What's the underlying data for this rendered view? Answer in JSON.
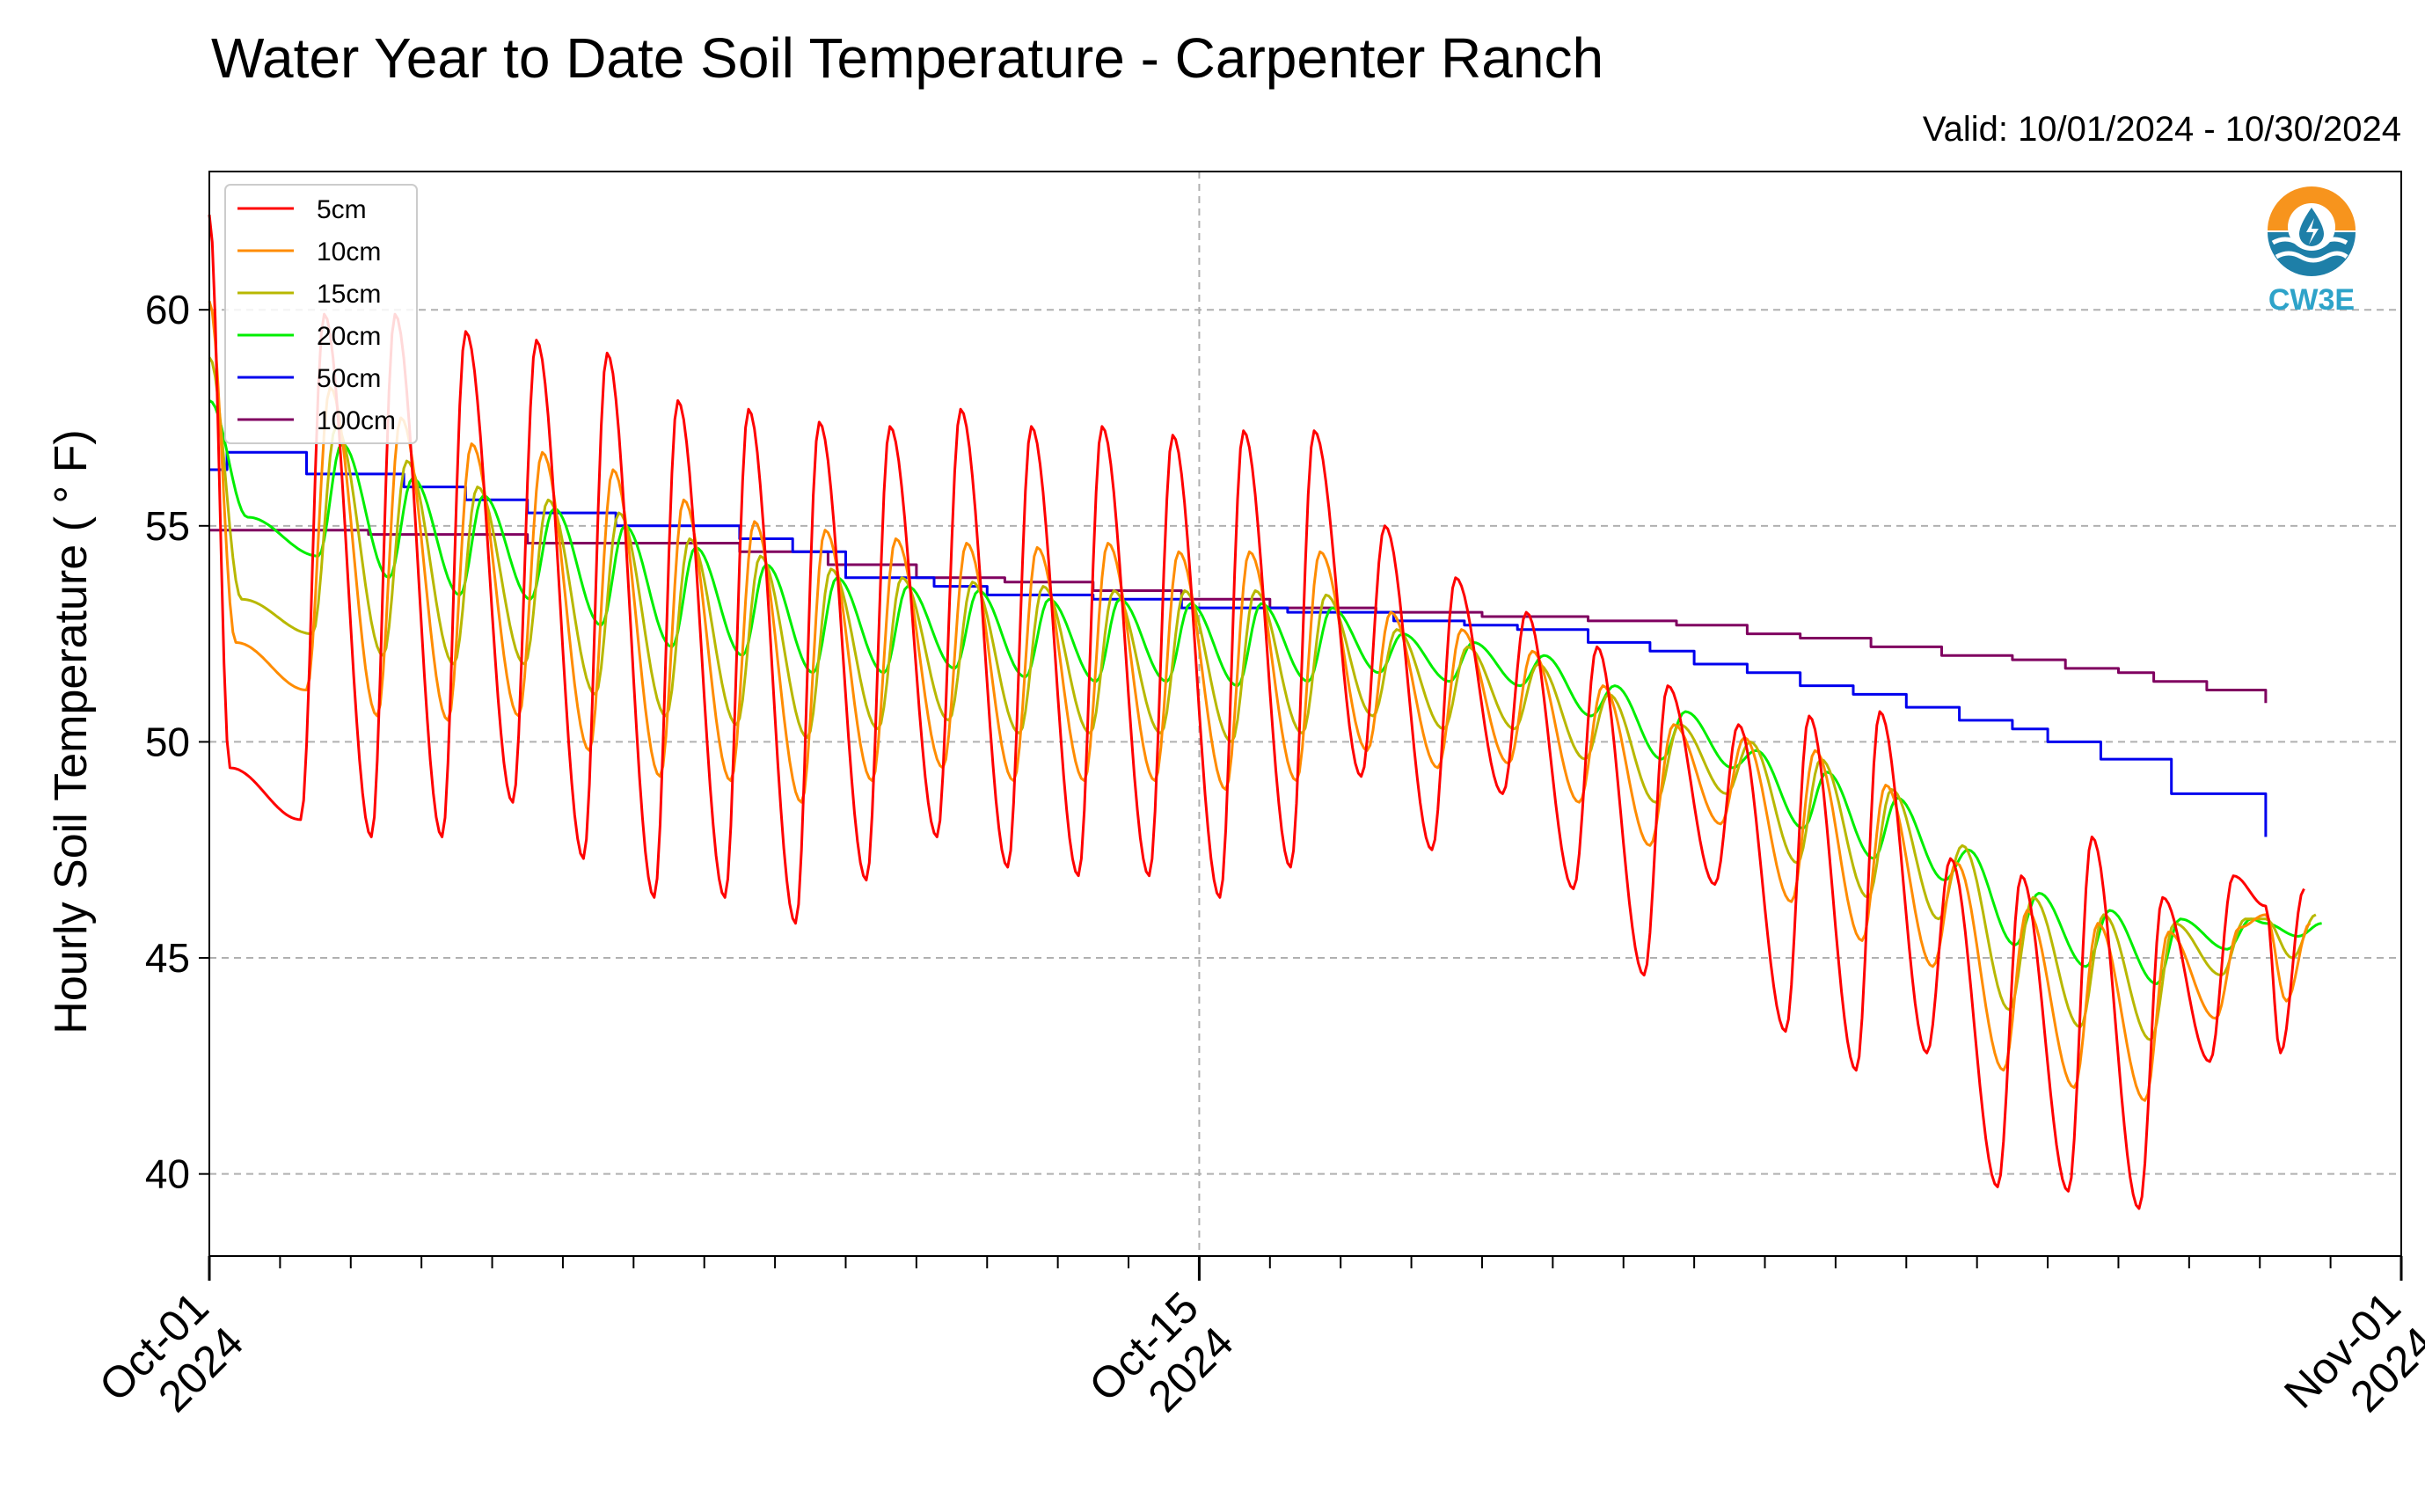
{
  "chart_data": {
    "type": "line",
    "title": "Water Year to Date Soil Temperature - Carpenter Ranch",
    "subtitle": "Valid: 10/01/2024 - 10/30/2024",
    "xlabel": "",
    "ylabel": "Hourly Soil Temperature ( ° F)",
    "ylim": [
      38.1,
      63.2
    ],
    "xlim": [
      "2024-10-01",
      "2024-11-01"
    ],
    "yticks": [
      40,
      45,
      50,
      55,
      60
    ],
    "xticks": [
      {
        "date": "2024-10-01",
        "line1": "Oct-01",
        "line2": "2024"
      },
      {
        "date": "2024-10-15",
        "line1": "Oct-15",
        "line2": "2024"
      },
      {
        "date": "2024-11-01",
        "line1": "Nov-01",
        "line2": "2024"
      }
    ],
    "grid": true,
    "legend_position": "top-left",
    "series": [
      {
        "name": "5cm",
        "color": "#ff0000",
        "daily_max": [
          62.2,
          59.9,
          59.9,
          59.5,
          59.3,
          59.0,
          57.9,
          57.7,
          57.4,
          57.3,
          57.7,
          57.3,
          57.3,
          57.1,
          57.2,
          57.2,
          55.0,
          53.8,
          53.0,
          52.2,
          51.3,
          50.4,
          50.6,
          50.7,
          47.3,
          46.9,
          47.8,
          46.4,
          46.9,
          46.6
        ],
        "daily_min": [
          49.4,
          48.2,
          47.8,
          47.8,
          48.6,
          47.3,
          46.4,
          46.4,
          45.8,
          46.8,
          47.8,
          47.1,
          46.9,
          46.9,
          46.4,
          47.1,
          49.2,
          47.5,
          48.8,
          46.6,
          44.6,
          46.7,
          43.3,
          42.4,
          42.8,
          39.7,
          39.6,
          39.2,
          42.6,
          42.8
        ],
        "end_value": 46.2
      },
      {
        "name": "10cm",
        "color": "#ff8c00",
        "daily_max": [
          60.2,
          58.2,
          57.5,
          56.9,
          56.7,
          56.3,
          55.6,
          55.1,
          54.9,
          54.7,
          54.6,
          54.5,
          54.6,
          54.4,
          54.4,
          54.4,
          53.0,
          52.6,
          52.1,
          51.3,
          50.4,
          50.1,
          49.8,
          49.0,
          47.2,
          46.1,
          45.8,
          45.6,
          45.7,
          45.8
        ],
        "daily_min": [
          52.3,
          51.2,
          50.6,
          50.5,
          50.6,
          49.8,
          49.2,
          49.1,
          48.6,
          49.1,
          49.4,
          49.1,
          49.1,
          49.1,
          48.9,
          49.1,
          49.8,
          49.4,
          49.5,
          48.6,
          47.6,
          48.1,
          46.3,
          45.4,
          44.8,
          42.4,
          42.0,
          41.7,
          43.6,
          44.0
        ],
        "end_value": 46.0
      },
      {
        "name": "15cm",
        "color": "#b8b800",
        "daily_max": [
          58.9,
          57.3,
          56.5,
          55.9,
          55.6,
          55.3,
          54.7,
          54.3,
          54.0,
          53.8,
          53.7,
          53.6,
          53.5,
          53.5,
          53.5,
          53.4,
          52.6,
          52.2,
          51.8,
          51.1,
          50.4,
          50.0,
          49.6,
          48.9,
          47.6,
          46.4,
          46.0,
          45.8,
          45.9,
          46.0
        ],
        "daily_min": [
          53.3,
          52.5,
          52.0,
          51.8,
          51.8,
          51.1,
          50.6,
          50.4,
          50.1,
          50.3,
          50.5,
          50.2,
          50.2,
          50.2,
          50.0,
          50.2,
          50.6,
          50.3,
          50.3,
          49.6,
          48.6,
          48.8,
          47.2,
          46.4,
          45.9,
          43.8,
          43.4,
          43.1,
          44.6,
          45.0
        ],
        "end_value": 45.9
      },
      {
        "name": "20cm",
        "color": "#00ee00",
        "daily_max": [
          57.9,
          56.9,
          56.1,
          55.7,
          55.4,
          55.0,
          54.5,
          54.1,
          53.8,
          53.6,
          53.5,
          53.3,
          53.3,
          53.2,
          53.2,
          53.1,
          52.5,
          52.3,
          52.0,
          51.3,
          50.7,
          49.8,
          49.3,
          48.7,
          47.5,
          46.5,
          46.1,
          45.9,
          45.9,
          45.8
        ],
        "daily_min": [
          55.2,
          54.3,
          53.8,
          53.4,
          53.3,
          52.7,
          52.2,
          52.0,
          51.6,
          51.6,
          51.7,
          51.5,
          51.4,
          51.4,
          51.3,
          51.4,
          51.6,
          51.4,
          51.3,
          50.6,
          49.6,
          49.4,
          48.0,
          47.3,
          46.8,
          45.3,
          44.8,
          44.4,
          45.2,
          45.5
        ],
        "end_value": 45.8
      },
      {
        "name": "50cm",
        "color": "#0000ee",
        "x": [
          "2024-10-01T00:00",
          "2024-10-01T06:00",
          "2024-10-02T09:00",
          "2024-10-03T18:00",
          "2024-10-04T15:00",
          "2024-10-05T12:00",
          "2024-10-06T18:00",
          "2024-10-08T12:00",
          "2024-10-09T06:00",
          "2024-10-10T00:00",
          "2024-10-11T06:00",
          "2024-10-12T00:00",
          "2024-10-13T12:00",
          "2024-10-14T18:00",
          "2024-10-16T06:00",
          "2024-10-17T18:00",
          "2024-10-18T18:00",
          "2024-10-19T12:00",
          "2024-10-20T12:00",
          "2024-10-21T09:00",
          "2024-10-22T00:00",
          "2024-10-22T18:00",
          "2024-10-23T12:00",
          "2024-10-24T06:00",
          "2024-10-25T00:00",
          "2024-10-25T18:00",
          "2024-10-26T12:00",
          "2024-10-27T00:00",
          "2024-10-27T18:00",
          "2024-10-28T18:00",
          "2024-10-30T02:00"
        ],
        "y": [
          56.3,
          56.7,
          56.2,
          55.9,
          55.6,
          55.3,
          55.0,
          54.7,
          54.4,
          53.8,
          53.6,
          53.4,
          53.3,
          53.1,
          53.0,
          52.8,
          52.7,
          52.6,
          52.3,
          52.1,
          51.8,
          51.6,
          51.3,
          51.1,
          50.8,
          50.5,
          50.3,
          50.0,
          49.6,
          48.8,
          47.8
        ]
      },
      {
        "name": "100cm",
        "color": "#800060",
        "x": [
          "2024-10-01T00:00",
          "2024-10-03T06:00",
          "2024-10-05T12:00",
          "2024-10-08T12:00",
          "2024-10-09T18:00",
          "2024-10-11T00:00",
          "2024-10-12T06:00",
          "2024-10-13T12:00",
          "2024-10-14T18:00",
          "2024-10-16T00:00",
          "2024-10-17T12:00",
          "2024-10-19T00:00",
          "2024-10-20T12:00",
          "2024-10-21T18:00",
          "2024-10-22T18:00",
          "2024-10-23T12:00",
          "2024-10-24T12:00",
          "2024-10-25T12:00",
          "2024-10-26T12:00",
          "2024-10-27T06:00",
          "2024-10-28T00:00",
          "2024-10-28T12:00",
          "2024-10-29T06:00",
          "2024-10-30T02:00"
        ],
        "y": [
          54.9,
          54.8,
          54.6,
          54.4,
          54.1,
          53.8,
          53.7,
          53.5,
          53.3,
          53.1,
          53.0,
          52.9,
          52.8,
          52.7,
          52.5,
          52.4,
          52.2,
          52.0,
          51.9,
          51.7,
          51.6,
          51.4,
          51.2,
          50.9
        ]
      }
    ]
  },
  "logo": {
    "text": "CW3E"
  },
  "colors": {
    "axes": "#000000",
    "grid": "#b0b0b0",
    "legend_border": "#cccccc"
  }
}
